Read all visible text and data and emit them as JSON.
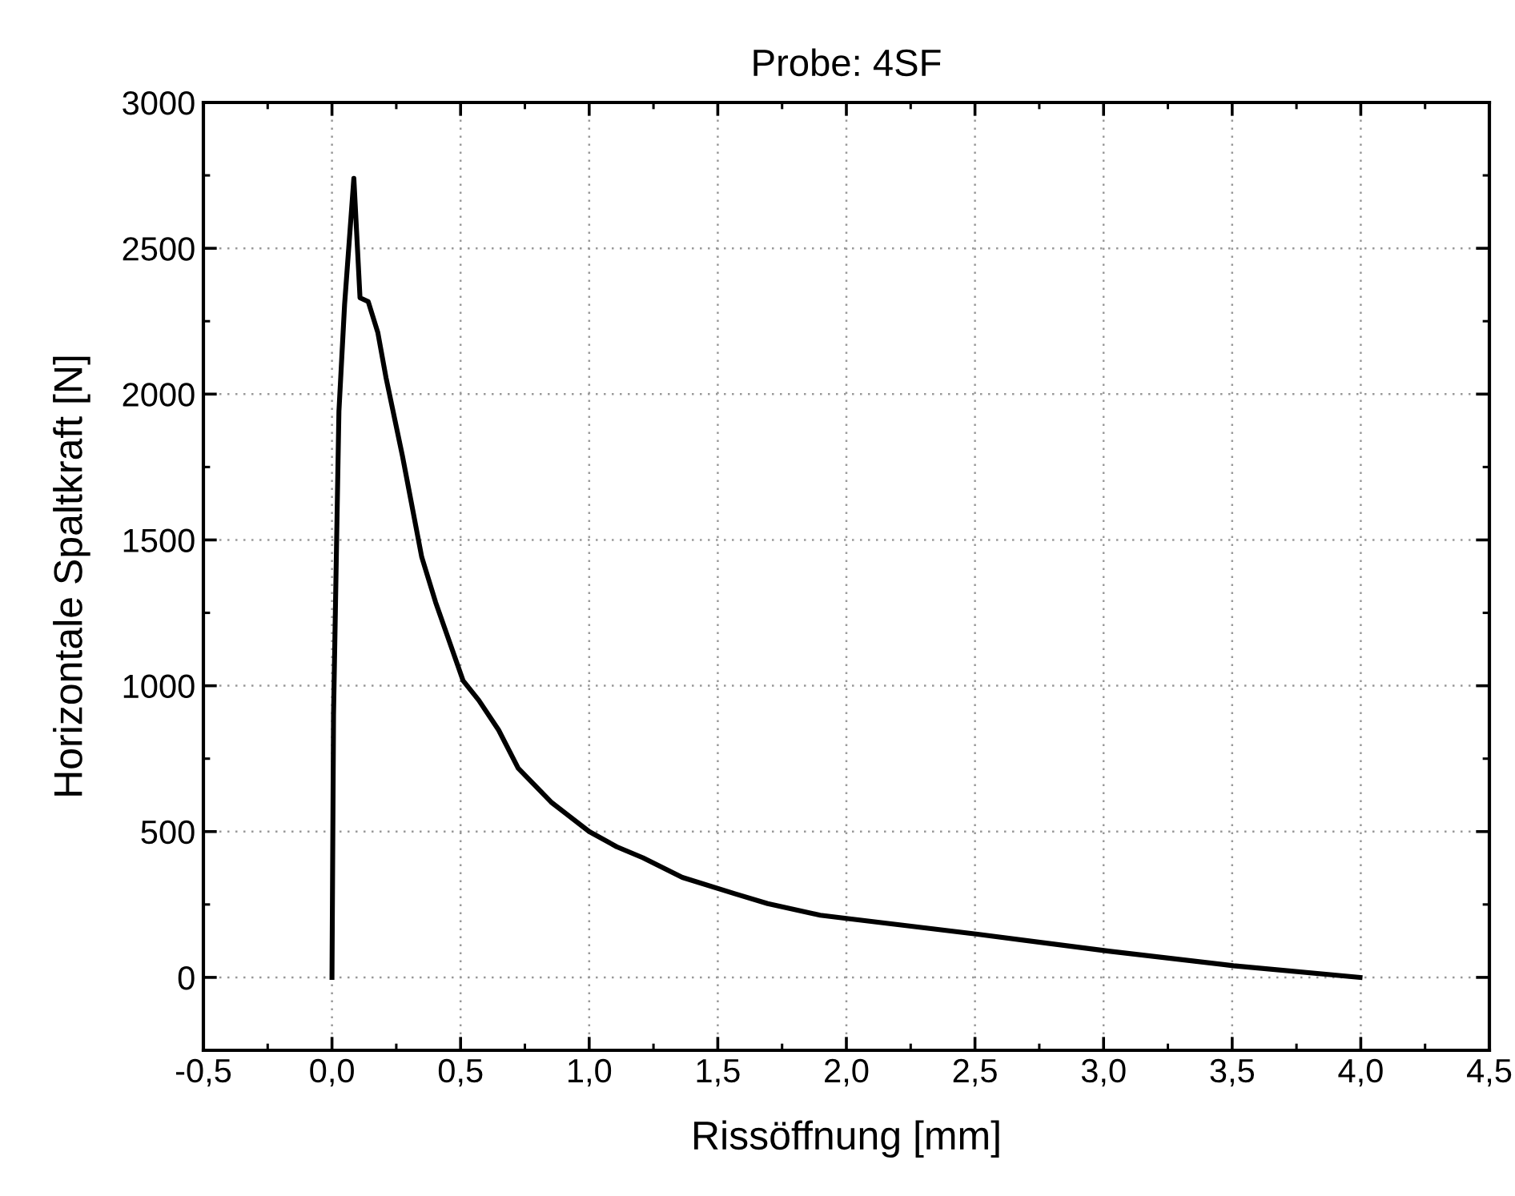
{
  "chart_data": {
    "type": "line",
    "title": "Probe: 4SF",
    "xlabel": "Rissöffnung [mm]",
    "ylabel": "Horizontale Spaltkraft [N]",
    "series": [
      {
        "color": "#000000",
        "x": [
          0,
          0.006,
          0.027,
          0.049,
          0.085,
          0.109,
          0.141,
          0.178,
          0.21,
          0.274,
          0.349,
          0.403,
          0.51,
          0.571,
          0.648,
          0.724,
          0.852,
          1.0,
          1.107,
          1.209,
          1.362,
          1.566,
          1.694,
          1.898,
          2.0,
          2.51,
          3.02,
          3.505,
          3.997
        ],
        "values": [
          0,
          899,
          1941,
          2307,
          2740,
          2330,
          2317,
          2212,
          2057,
          1788,
          1441,
          1286,
          1017,
          950,
          848,
          717,
          601,
          500,
          448,
          410,
          343,
          287,
          253,
          213,
          202,
          148,
          90,
          40,
          0
        ]
      }
    ],
    "xlim": [
      -0.5,
      4.5
    ],
    "ylim": [
      -250,
      3000
    ],
    "xticks": [
      {
        "value": -0.5,
        "label": "-0,5"
      },
      {
        "value": 0,
        "label": "0,0"
      },
      {
        "value": 0.5,
        "label": "0,5"
      },
      {
        "value": 1,
        "label": "1,0"
      },
      {
        "value": 1.5,
        "label": "1,5"
      },
      {
        "value": 2,
        "label": "2,0"
      },
      {
        "value": 2.5,
        "label": "2,5"
      },
      {
        "value": 3,
        "label": "3,0"
      },
      {
        "value": 3.5,
        "label": "3,5"
      },
      {
        "value": 4,
        "label": "4,0"
      },
      {
        "value": 4.5,
        "label": "4,5"
      }
    ],
    "yticks": [
      0,
      500,
      1000,
      1500,
      2000,
      2500,
      3000
    ],
    "grid": true,
    "marker": "none",
    "line_style": "solid",
    "legend": false
  }
}
